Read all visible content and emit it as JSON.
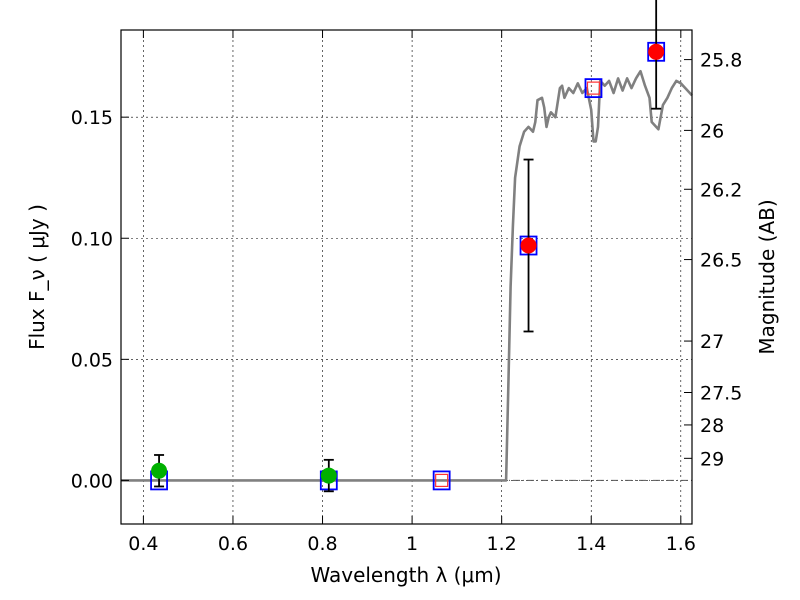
{
  "chart_data": {
    "type": "scatter",
    "xlabel": "Wavelength  λ (μm)",
    "ylabel": "Flux  F_ν  ( μJy )",
    "y2label": "Magnitude (AB)",
    "xlim": [
      0.35,
      1.625
    ],
    "ylim": [
      -0.018,
      0.186
    ],
    "grid": true,
    "x_ticks": [
      {
        "value": 0.4,
        "label": "0.4"
      },
      {
        "value": 0.6,
        "label": "0.6"
      },
      {
        "value": 0.8,
        "label": "0.8"
      },
      {
        "value": 1.0,
        "label": "1"
      },
      {
        "value": 1.2,
        "label": "1.2"
      },
      {
        "value": 1.4,
        "label": "1.4"
      },
      {
        "value": 1.6,
        "label": "1.6"
      }
    ],
    "y_ticks": [
      {
        "value": 0.0,
        "label": "0.00"
      },
      {
        "value": 0.05,
        "label": "0.05"
      },
      {
        "value": 0.1,
        "label": "0.10"
      },
      {
        "value": 0.15,
        "label": "0.15"
      }
    ],
    "y2_ticks": [
      {
        "value": 25.8,
        "label": "25.8"
      },
      {
        "value": 26.0,
        "label": "26"
      },
      {
        "value": 26.2,
        "label": "26.2"
      },
      {
        "value": 26.5,
        "label": "26.5"
      },
      {
        "value": 27.0,
        "label": "27"
      },
      {
        "value": 27.5,
        "label": "27.5"
      },
      {
        "value": 28.0,
        "label": "28"
      },
      {
        "value": 29.0,
        "label": "29"
      }
    ],
    "model_spectrum": {
      "color": "#808080",
      "x": [
        0.35,
        1.21,
        1.215,
        1.22,
        1.225,
        1.23,
        1.24,
        1.25,
        1.26,
        1.27,
        1.275,
        1.28,
        1.29,
        1.295,
        1.3,
        1.305,
        1.31,
        1.32,
        1.33,
        1.335,
        1.34,
        1.35,
        1.36,
        1.37,
        1.38,
        1.39,
        1.4,
        1.405,
        1.41,
        1.415,
        1.42,
        1.43,
        1.44,
        1.45,
        1.46,
        1.47,
        1.48,
        1.49,
        1.5,
        1.51,
        1.52,
        1.53,
        1.535,
        1.54,
        1.55,
        1.56,
        1.57,
        1.58,
        1.59,
        1.6,
        1.61,
        1.625
      ],
      "y": [
        0.0,
        0.0,
        0.04,
        0.08,
        0.105,
        0.125,
        0.138,
        0.144,
        0.146,
        0.144,
        0.148,
        0.157,
        0.158,
        0.154,
        0.146,
        0.15,
        0.152,
        0.15,
        0.162,
        0.163,
        0.158,
        0.162,
        0.16,
        0.164,
        0.16,
        0.162,
        0.153,
        0.14,
        0.14,
        0.146,
        0.165,
        0.163,
        0.165,
        0.16,
        0.166,
        0.161,
        0.166,
        0.162,
        0.166,
        0.169,
        0.163,
        0.158,
        0.148,
        0.147,
        0.145,
        0.155,
        0.158,
        0.162,
        0.165,
        0.164,
        0.162,
        0.159
      ]
    },
    "model_points": {
      "marker": "square",
      "edge_color": "#0000ff",
      "x": [
        0.435,
        0.814,
        1.066,
        1.26,
        1.405,
        1.545
      ],
      "y": [
        0.0,
        0.0,
        0.0,
        0.097,
        0.162,
        0.177
      ]
    },
    "upper_limit_points": {
      "marker": "square",
      "edge_color": "#ff3333",
      "x": [
        1.066,
        1.405
      ],
      "y": [
        0.0,
        0.162
      ]
    },
    "observed_optical": {
      "color": "#00b000",
      "x": [
        0.435,
        0.814
      ],
      "y": [
        0.004,
        0.002
      ],
      "err": [
        0.0065,
        0.0065
      ]
    },
    "observed_nir": {
      "color": "#ff0000",
      "x": [
        1.26,
        1.545
      ],
      "y": [
        0.097,
        0.177
      ],
      "err": [
        0.0355,
        0.0235
      ]
    },
    "zero_line": {
      "color": "#555555",
      "y": 0.0
    }
  }
}
